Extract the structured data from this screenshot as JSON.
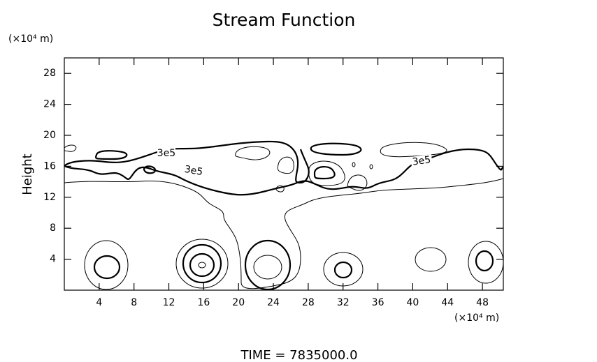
{
  "chart_data": {
    "type": "contour",
    "title": "Stream Function",
    "y_unit": "(×10⁴ m)",
    "x_unit": "(×10⁴ m)",
    "y_label": "Height",
    "footer": "TIME  =  7835000.0",
    "contour_labels": [
      "3e5",
      "3e5",
      "3e5"
    ],
    "xlim": [
      0,
      50.4
    ],
    "ylim": [
      0,
      30
    ],
    "xticks": [
      4,
      8,
      12,
      16,
      20,
      24,
      28,
      32,
      36,
      40,
      44,
      48
    ],
    "yticks": [
      4,
      8,
      12,
      16,
      20,
      24,
      28
    ]
  }
}
